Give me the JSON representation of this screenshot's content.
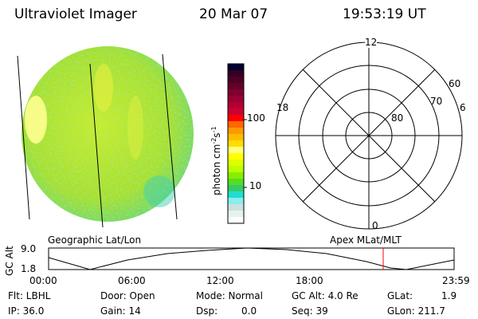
{
  "header": {
    "instrument": "Ultraviolet Imager",
    "date": "20 Mar 07",
    "time": "19:53:19 UT"
  },
  "colorbar": {
    "label": "photon cm-2s-1",
    "label_base": "photon cm",
    "label_exp1": "-2",
    "label_s": "s",
    "label_exp2": "-1",
    "ticks": [
      "100",
      "10"
    ],
    "scale": "log",
    "colors": [
      "#000033",
      "#330022",
      "#4d0026",
      "#66002a",
      "#800030",
      "#990033",
      "#b30033",
      "#cc0033",
      "#ff0000",
      "#ff6600",
      "#ff9900",
      "#ffbb00",
      "#ffdd00",
      "#ffff80",
      "#ffff00",
      "#ddff00",
      "#bbff00",
      "#88ee00",
      "#55dd22",
      "#33cc66",
      "#22ddcc",
      "#88eeee",
      "#cce0e0",
      "#e6f2ee",
      "#ffffff"
    ]
  },
  "polar": {
    "mlt_labels": {
      "top": "12",
      "left": "18",
      "right": "6",
      "bottom": "0"
    },
    "lat_labels": [
      "60",
      "70",
      "80"
    ]
  },
  "timeline": {
    "left_title": "Geographic Lat/Lon",
    "right_title": "Apex MLat/MLT",
    "y_label": "GC Alt",
    "y_ticks": [
      "9.0",
      "1.8"
    ],
    "x_ticks": [
      "00:00",
      "06:00",
      "12:00",
      "18:00",
      "23:59"
    ],
    "current_marker_time": "19:53",
    "marker_color": "#ff0000"
  },
  "info": {
    "flt": "Flt: LBHL",
    "ip": "IP: 36.0",
    "door": "Door: Open",
    "gain": "Gain: 14",
    "mode": "Mode: Normal",
    "dsp_label": "Dsp:",
    "dsp_value": "0.0",
    "gc_alt": "GC Alt: 4.0 Re",
    "seq": "Seq: 39",
    "glat_label": "GLat:",
    "glat_value": "1.9",
    "glon": "GLon: 211.7"
  }
}
